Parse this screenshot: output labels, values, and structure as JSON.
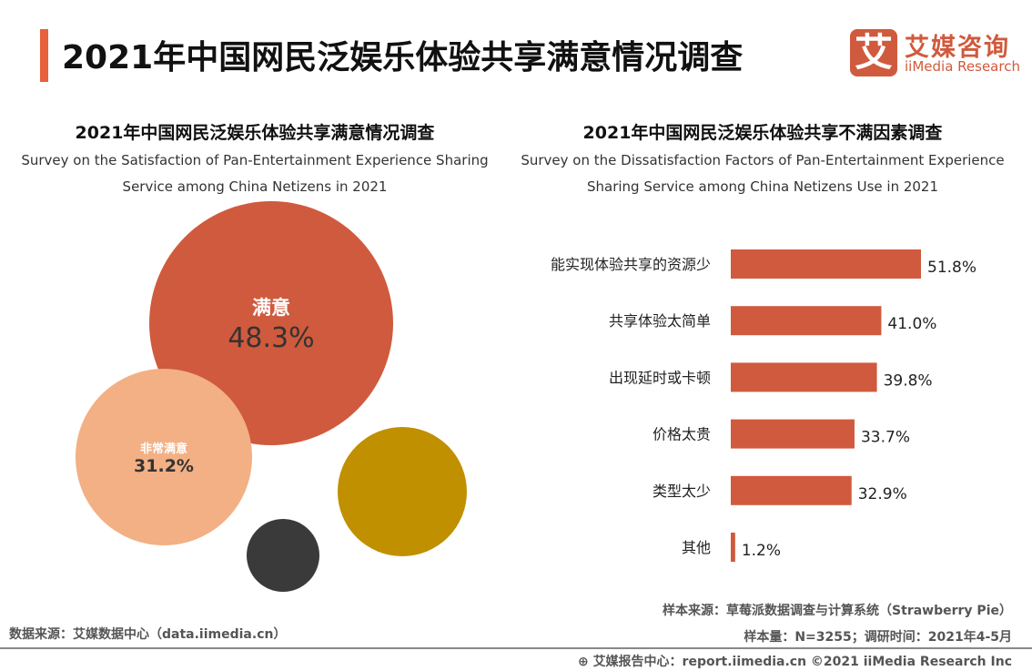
{
  "header": {
    "title": "2021年中国网民泛娱乐体验共享满意情况调查",
    "logo_mark": "艾",
    "logo_cn": "艾媒咨询",
    "logo_en": "iiMedia Research"
  },
  "chart_data": [
    {
      "type": "bubble",
      "title": "2021年中国网民泛娱乐体验共享满意情况调查",
      "subtitle": "Survey on the Satisfaction of Pan-Entertainment Experience Sharing Service among China Netizens in 2021",
      "bubbles": [
        {
          "label": "满意",
          "value": 48.3,
          "display": "48.3%",
          "color": "#d05a3d"
        },
        {
          "label": "非常满意",
          "value": 31.2,
          "display": "31.2%",
          "color": "#f2b084"
        },
        {
          "label": "",
          "value": null,
          "color": "#c09000"
        },
        {
          "label": "",
          "value": null,
          "color": "#3a3a3a"
        }
      ]
    },
    {
      "type": "bar",
      "orientation": "horizontal",
      "title": "2021年中国网民泛娱乐体验共享不满因素调查",
      "subtitle": "Survey on the Dissatisfaction Factors of Pan-Entertainment Experience Sharing Service among China Netizens Use in 2021",
      "categories": [
        "能实现体验共享的资源少",
        "共享体验太简单",
        "出现延时或卡顿",
        "价格太贵",
        "类型太少",
        "其他"
      ],
      "values": [
        51.8,
        41.0,
        39.8,
        33.7,
        32.9,
        1.2
      ],
      "labels": [
        "51.8%",
        "41.0%",
        "39.8%",
        "33.7%",
        "32.9%",
        "1.2%"
      ],
      "color": "#d05a3d"
    }
  ],
  "footer": {
    "data_source": "数据来源：艾媒数据中心（data.iimedia.cn）",
    "sample_source": "样本来源：草莓派数据调查与计算系统（Strawberry Pie）",
    "sample_size": "样本量：N=3255；调研时间：2021年4-5月",
    "report": "艾媒报告中心：report.iimedia.cn ©2021  iiMedia Research Inc"
  }
}
